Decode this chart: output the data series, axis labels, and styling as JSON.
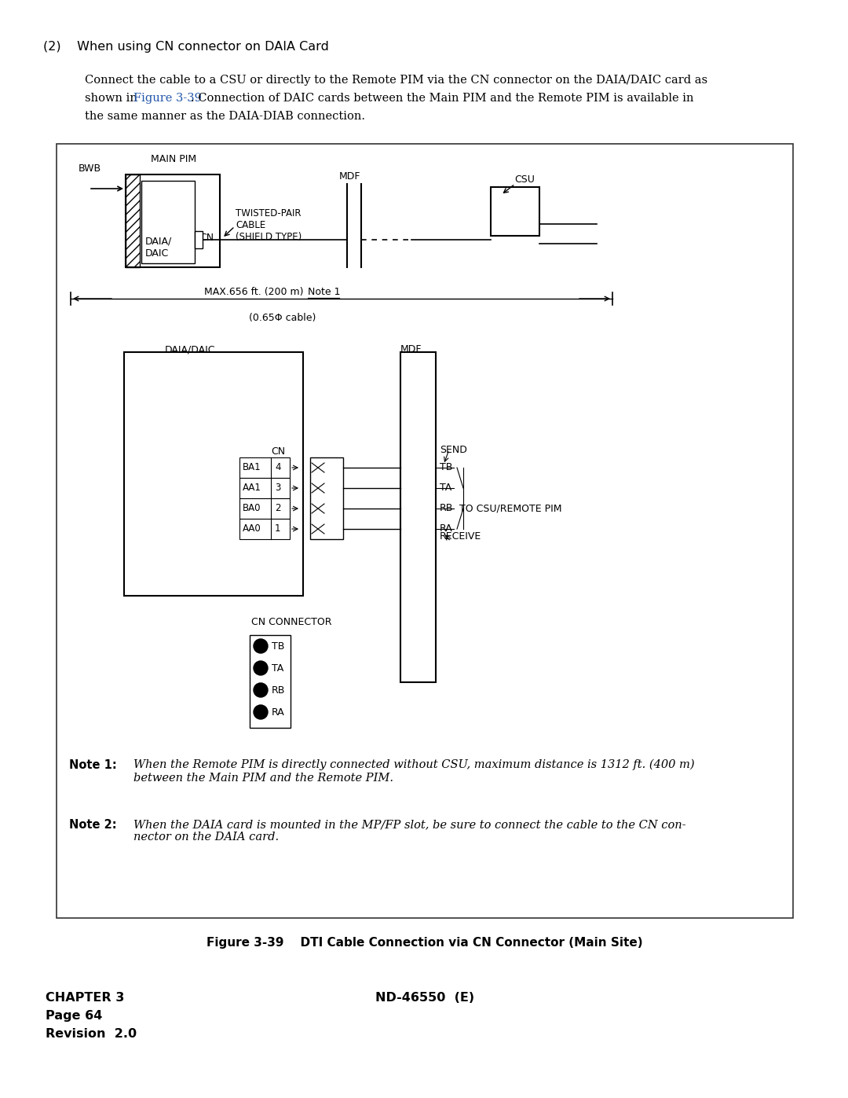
{
  "bg_color": "#ffffff",
  "text_color": "#000000",
  "blue_color": "#2255aa",
  "page_title_1": "(2)    When using CN connector on DAIA Card",
  "fig_caption": "Figure 3-39    DTI Cable Connection via CN Connector (Main Site)",
  "footer_left": "CHAPTER 3\nPage 64\nRevision  2.0",
  "footer_center": "ND-46550  (E)",
  "note1_label": "Note 1:",
  "note1_text": "When the Remote PIM is directly connected without CSU, maximum distance is 1312 ft. (400 m)\nbetween the Main PIM and the Remote PIM.",
  "note2_label": "Note 2:",
  "note2_text": "When the DAIA card is mounted in the MP/FP slot, be sure to connect the cable to the CN con-\nnector on the DAIA card."
}
